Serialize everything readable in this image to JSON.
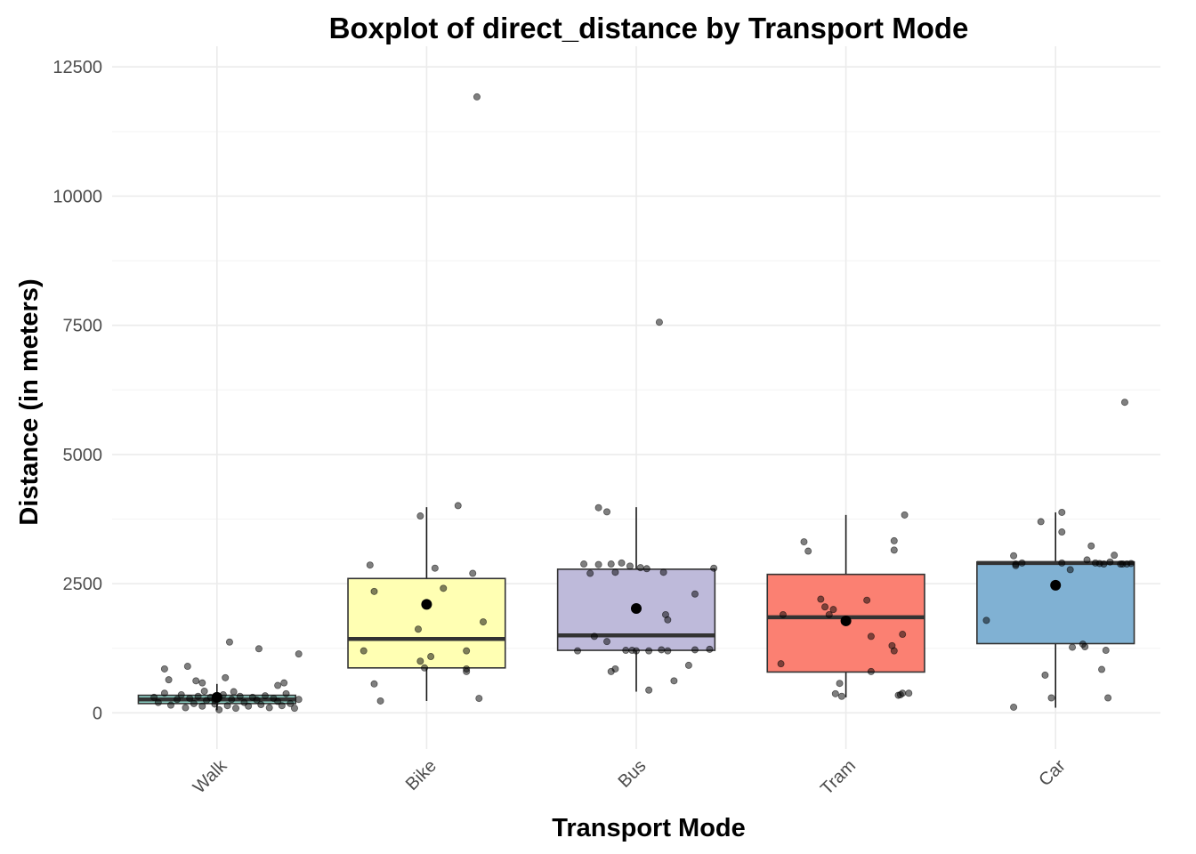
{
  "chart_data": {
    "type": "boxplot",
    "title": "Boxplot of direct_distance by Transport Mode",
    "xlabel": "Transport Mode",
    "ylabel": "Distance (in meters)",
    "ylim": [
      -700,
      12900
    ],
    "yticks": [
      0,
      2500,
      5000,
      7500,
      10000,
      12500
    ],
    "grid": true,
    "legend": "none",
    "categories": [
      "Walk",
      "Bike",
      "Bus",
      "Tram",
      "Car"
    ],
    "colors": [
      "#8dd3c7",
      "#ffffb3",
      "#bebada",
      "#fb8072",
      "#80b1d3"
    ],
    "boxes": [
      {
        "category": "Walk",
        "q1": 180,
        "median": 260,
        "q3": 340,
        "whisker_low": 50,
        "whisker_high": 560,
        "mean": 300
      },
      {
        "category": "Bike",
        "q1": 870,
        "median": 1430,
        "q3": 2600,
        "whisker_low": 230,
        "whisker_high": 3980,
        "mean": 2100
      },
      {
        "category": "Bus",
        "q1": 1210,
        "median": 1500,
        "q3": 2780,
        "whisker_low": 410,
        "whisker_high": 3980,
        "mean": 2020
      },
      {
        "category": "Tram",
        "q1": 790,
        "median": 1850,
        "q3": 2680,
        "whisker_low": 300,
        "whisker_high": 3830,
        "mean": 1780
      },
      {
        "category": "Car",
        "q1": 1340,
        "median": 2900,
        "q3": 2920,
        "whisker_low": 100,
        "whisker_high": 3880,
        "mean": 2470
      }
    ],
    "points": [
      [
        [
          -0.25,
          850
        ],
        [
          -0.23,
          640
        ],
        [
          -0.14,
          900
        ],
        [
          -0.1,
          620
        ],
        [
          -0.07,
          580
        ],
        [
          -0.01,
          250
        ],
        [
          0.04,
          680
        ],
        [
          0.06,
          1370
        ],
        [
          0.2,
          1240
        ],
        [
          0.32,
          580
        ],
        [
          0.29,
          530
        ],
        [
          0.39,
          1140
        ],
        [
          -0.3,
          300
        ],
        [
          -0.28,
          200
        ],
        [
          -0.25,
          380
        ],
        [
          -0.22,
          150
        ],
        [
          -0.19,
          260
        ],
        [
          -0.17,
          350
        ],
        [
          -0.15,
          100
        ],
        [
          -0.13,
          280
        ],
        [
          -0.11,
          180
        ],
        [
          -0.09,
          320
        ],
        [
          -0.07,
          130
        ],
        [
          -0.05,
          240
        ],
        [
          -0.03,
          300
        ],
        [
          -0.01,
          170
        ],
        [
          0.01,
          60
        ],
        [
          0.03,
          350
        ],
        [
          0.05,
          140
        ],
        [
          0.07,
          260
        ],
        [
          0.09,
          90
        ],
        [
          0.11,
          320
        ],
        [
          0.13,
          200
        ],
        [
          0.15,
          130
        ],
        [
          0.17,
          300
        ],
        [
          0.19,
          250
        ],
        [
          0.21,
          160
        ],
        [
          0.23,
          330
        ],
        [
          0.25,
          100
        ],
        [
          0.27,
          280
        ],
        [
          0.29,
          220
        ],
        [
          0.31,
          140
        ],
        [
          0.33,
          370
        ],
        [
          0.35,
          180
        ],
        [
          0.37,
          90
        ],
        [
          0.39,
          260
        ],
        [
          -0.06,
          420
        ],
        [
          0.08,
          410
        ]
      ],
      [
        [
          -0.27,
          2860
        ],
        [
          -0.25,
          2350
        ],
        [
          -0.3,
          1200
        ],
        [
          -0.25,
          560
        ],
        [
          -0.22,
          230
        ],
        [
          -0.04,
          1620
        ],
        [
          -0.03,
          1000
        ],
        [
          -0.03,
          3810
        ],
        [
          0.02,
          1090
        ],
        [
          0.04,
          2800
        ],
        [
          0.08,
          2410
        ],
        [
          0.15,
          4010
        ],
        [
          0.19,
          800
        ],
        [
          0.19,
          850
        ],
        [
          0.19,
          1200
        ],
        [
          0.22,
          2700
        ],
        [
          0.24,
          11920
        ],
        [
          0.25,
          280
        ],
        [
          0.27,
          1760
        ],
        [
          -0.01,
          870
        ]
      ],
      [
        [
          -0.28,
          1200
        ],
        [
          -0.25,
          2880
        ],
        [
          -0.22,
          2700
        ],
        [
          -0.2,
          1480
        ],
        [
          -0.18,
          2870
        ],
        [
          -0.14,
          1380
        ],
        [
          -0.12,
          2880
        ],
        [
          -0.18,
          3970
        ],
        [
          -0.14,
          3890
        ],
        [
          -0.1,
          2720
        ],
        [
          -0.1,
          850
        ],
        [
          -0.12,
          800
        ],
        [
          -0.07,
          2900
        ],
        [
          -0.05,
          1210
        ],
        [
          -0.03,
          2840
        ],
        [
          -0.02,
          1210
        ],
        [
          0.0,
          1200
        ],
        [
          0.02,
          2810
        ],
        [
          0.05,
          2790
        ],
        [
          0.06,
          1200
        ],
        [
          0.06,
          440
        ],
        [
          0.11,
          7560
        ],
        [
          0.12,
          1220
        ],
        [
          0.15,
          1200
        ],
        [
          0.13,
          2720
        ],
        [
          0.14,
          1900
        ],
        [
          0.15,
          1800
        ],
        [
          0.18,
          620
        ],
        [
          0.25,
          920
        ],
        [
          0.28,
          2300
        ],
        [
          0.28,
          1220
        ],
        [
          0.35,
          1230
        ],
        [
          0.37,
          2800
        ]
      ],
      [
        [
          -0.31,
          950
        ],
        [
          -0.3,
          1900
        ],
        [
          -0.2,
          3310
        ],
        [
          -0.18,
          3130
        ],
        [
          -0.12,
          2200
        ],
        [
          -0.1,
          2050
        ],
        [
          -0.08,
          1900
        ],
        [
          -0.06,
          2000
        ],
        [
          -0.05,
          370
        ],
        [
          -0.03,
          570
        ],
        [
          -0.02,
          320
        ],
        [
          0.1,
          2180
        ],
        [
          0.12,
          800
        ],
        [
          0.12,
          1480
        ],
        [
          0.22,
          1300
        ],
        [
          0.23,
          1200
        ],
        [
          0.23,
          3150
        ],
        [
          0.23,
          3330
        ],
        [
          0.25,
          340
        ],
        [
          0.26,
          350
        ],
        [
          0.27,
          1520
        ],
        [
          0.27,
          380
        ],
        [
          0.28,
          3830
        ],
        [
          0.3,
          380
        ]
      ],
      [
        [
          -0.33,
          1790
        ],
        [
          -0.2,
          3040
        ],
        [
          -0.19,
          2880
        ],
        [
          -0.19,
          2850
        ],
        [
          -0.16,
          2900
        ],
        [
          -0.2,
          110
        ],
        [
          -0.07,
          3700
        ],
        [
          -0.05,
          730
        ],
        [
          0.03,
          3880
        ],
        [
          -0.02,
          290
        ],
        [
          0.03,
          3500
        ],
        [
          0.03,
          2900
        ],
        [
          0.07,
          2770
        ],
        [
          0.08,
          1270
        ],
        [
          0.13,
          1330
        ],
        [
          0.14,
          1280
        ],
        [
          0.15,
          2960
        ],
        [
          0.17,
          3230
        ],
        [
          0.19,
          2900
        ],
        [
          0.21,
          2890
        ],
        [
          0.23,
          2880
        ],
        [
          0.24,
          1210
        ],
        [
          0.26,
          2920
        ],
        [
          0.25,
          290
        ],
        [
          0.28,
          3050
        ],
        [
          0.31,
          2880
        ],
        [
          0.32,
          2880
        ],
        [
          0.33,
          6010
        ],
        [
          0.34,
          2880
        ],
        [
          0.36,
          2890
        ],
        [
          0.22,
          840
        ]
      ]
    ]
  }
}
